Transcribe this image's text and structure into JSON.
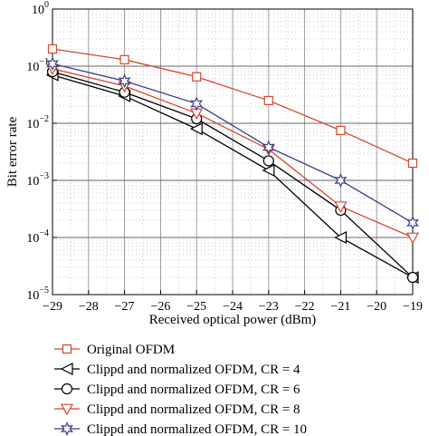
{
  "chart_data": {
    "type": "line",
    "title": "",
    "xlabel": "Received optical power (dBm)",
    "ylabel": "Bit error rate",
    "xlim": [
      -29,
      -19
    ],
    "ylim": [
      1e-05,
      1
    ],
    "yscale": "log",
    "grid": true,
    "legend_position": "below",
    "x_ticks": [
      {
        "value": -29,
        "label": "−29"
      },
      {
        "value": -28,
        "label": "−28"
      },
      {
        "value": -27,
        "label": "−27"
      },
      {
        "value": -26,
        "label": "−26"
      },
      {
        "value": -25,
        "label": "−25"
      },
      {
        "value": -24,
        "label": "−24"
      },
      {
        "value": -23,
        "label": "−23"
      },
      {
        "value": -22,
        "label": "−22"
      },
      {
        "value": -21,
        "label": "−21"
      },
      {
        "value": -20,
        "label": "−20"
      },
      {
        "value": -19,
        "label": "−19"
      }
    ],
    "y_ticks": [
      {
        "value": 1,
        "base": "10",
        "exp": "0"
      },
      {
        "value": 0.1,
        "base": "10",
        "exp": "−1"
      },
      {
        "value": 0.01,
        "base": "10",
        "exp": "−2"
      },
      {
        "value": 0.001,
        "base": "10",
        "exp": "−3"
      },
      {
        "value": 0.0001,
        "base": "10",
        "exp": "−4"
      },
      {
        "value": 1e-05,
        "base": "10",
        "exp": "−5"
      }
    ],
    "series": [
      {
        "name": "Original OFDM",
        "marker": "square",
        "color": "#d9452b",
        "x": [
          -29,
          -27,
          -25,
          -23,
          -21,
          -19
        ],
        "y": [
          0.2,
          0.13,
          0.065,
          0.025,
          0.0075,
          0.002
        ]
      },
      {
        "name": "Clippd and normalized OFDM, CR = 4",
        "marker": "triangle-left",
        "color": "#000000",
        "x": [
          -29,
          -27,
          -25,
          -23,
          -21,
          -19
        ],
        "y": [
          0.07,
          0.03,
          0.008,
          0.0015,
          0.0001,
          2e-05
        ]
      },
      {
        "name": "Clippd and normalized OFDM, CR = 6",
        "marker": "circle",
        "color": "#000000",
        "x": [
          -29,
          -27,
          -25,
          -23,
          -21,
          -19
        ],
        "y": [
          0.08,
          0.035,
          0.012,
          0.0022,
          0.0003,
          2e-05
        ]
      },
      {
        "name": "Clippd and normalized OFDM, CR = 8",
        "marker": "triangle-down",
        "color": "#d9452b",
        "x": [
          -29,
          -27,
          -25,
          -23,
          -21,
          -19
        ],
        "y": [
          0.09,
          0.045,
          0.015,
          0.0035,
          0.00035,
          0.0001
        ]
      },
      {
        "name": "Clippd and normalized OFDM, CR = 10",
        "marker": "star",
        "color": "#3b3b8c",
        "x": [
          -29,
          -27,
          -25,
          -23,
          -21,
          -19
        ],
        "y": [
          0.11,
          0.055,
          0.022,
          0.0038,
          0.001,
          0.00018
        ]
      }
    ]
  }
}
